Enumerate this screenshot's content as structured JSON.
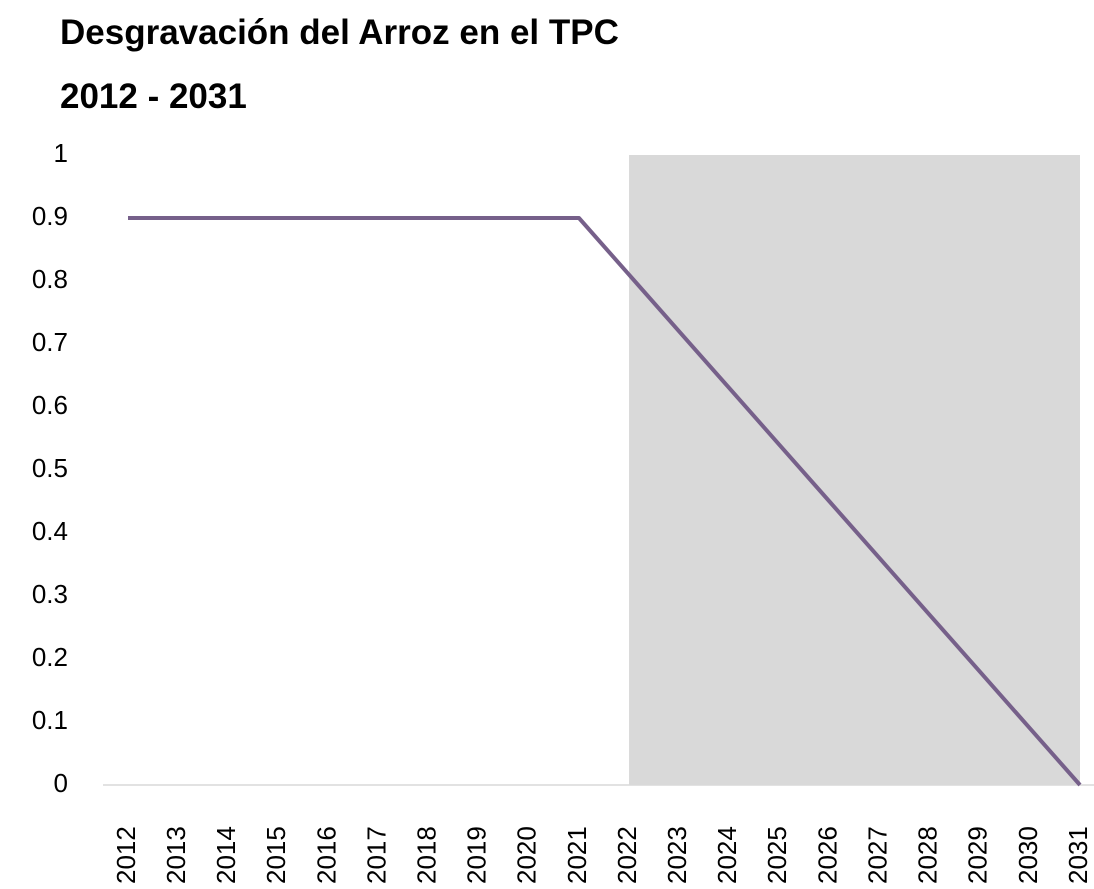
{
  "chart_data": {
    "type": "line",
    "title": "Desgravación del Arroz en el TPC",
    "subtitle": "2012  -  2031",
    "categories": [
      "2012",
      "2013",
      "2014",
      "2015",
      "2016",
      "2017",
      "2018",
      "2019",
      "2020",
      "2021",
      "2022",
      "2023",
      "2024",
      "2025",
      "2026",
      "2027",
      "2028",
      "2029",
      "2030",
      "2031"
    ],
    "series": [
      {
        "color": "#d9d9d9",
        "fill": true,
        "values": [
          null,
          null,
          null,
          null,
          null,
          null,
          null,
          null,
          null,
          null,
          1,
          1,
          1,
          1,
          1,
          1,
          1,
          1,
          1,
          1
        ]
      },
      {
        "color": "#76608a",
        "values": [
          0.9,
          0.9,
          0.9,
          0.9,
          0.9,
          0.9,
          0.9,
          0.9,
          0.9,
          0.9,
          0.81,
          0.72,
          0.63,
          0.54,
          0.45,
          0.36,
          0.27,
          0.18,
          0.09,
          0
        ]
      }
    ],
    "ylim": [
      0,
      1
    ],
    "yticks": [
      0,
      0.1,
      0.2,
      0.3,
      0.4,
      0.5,
      0.6,
      0.7,
      0.8,
      0.9,
      1
    ],
    "grid": false
  }
}
